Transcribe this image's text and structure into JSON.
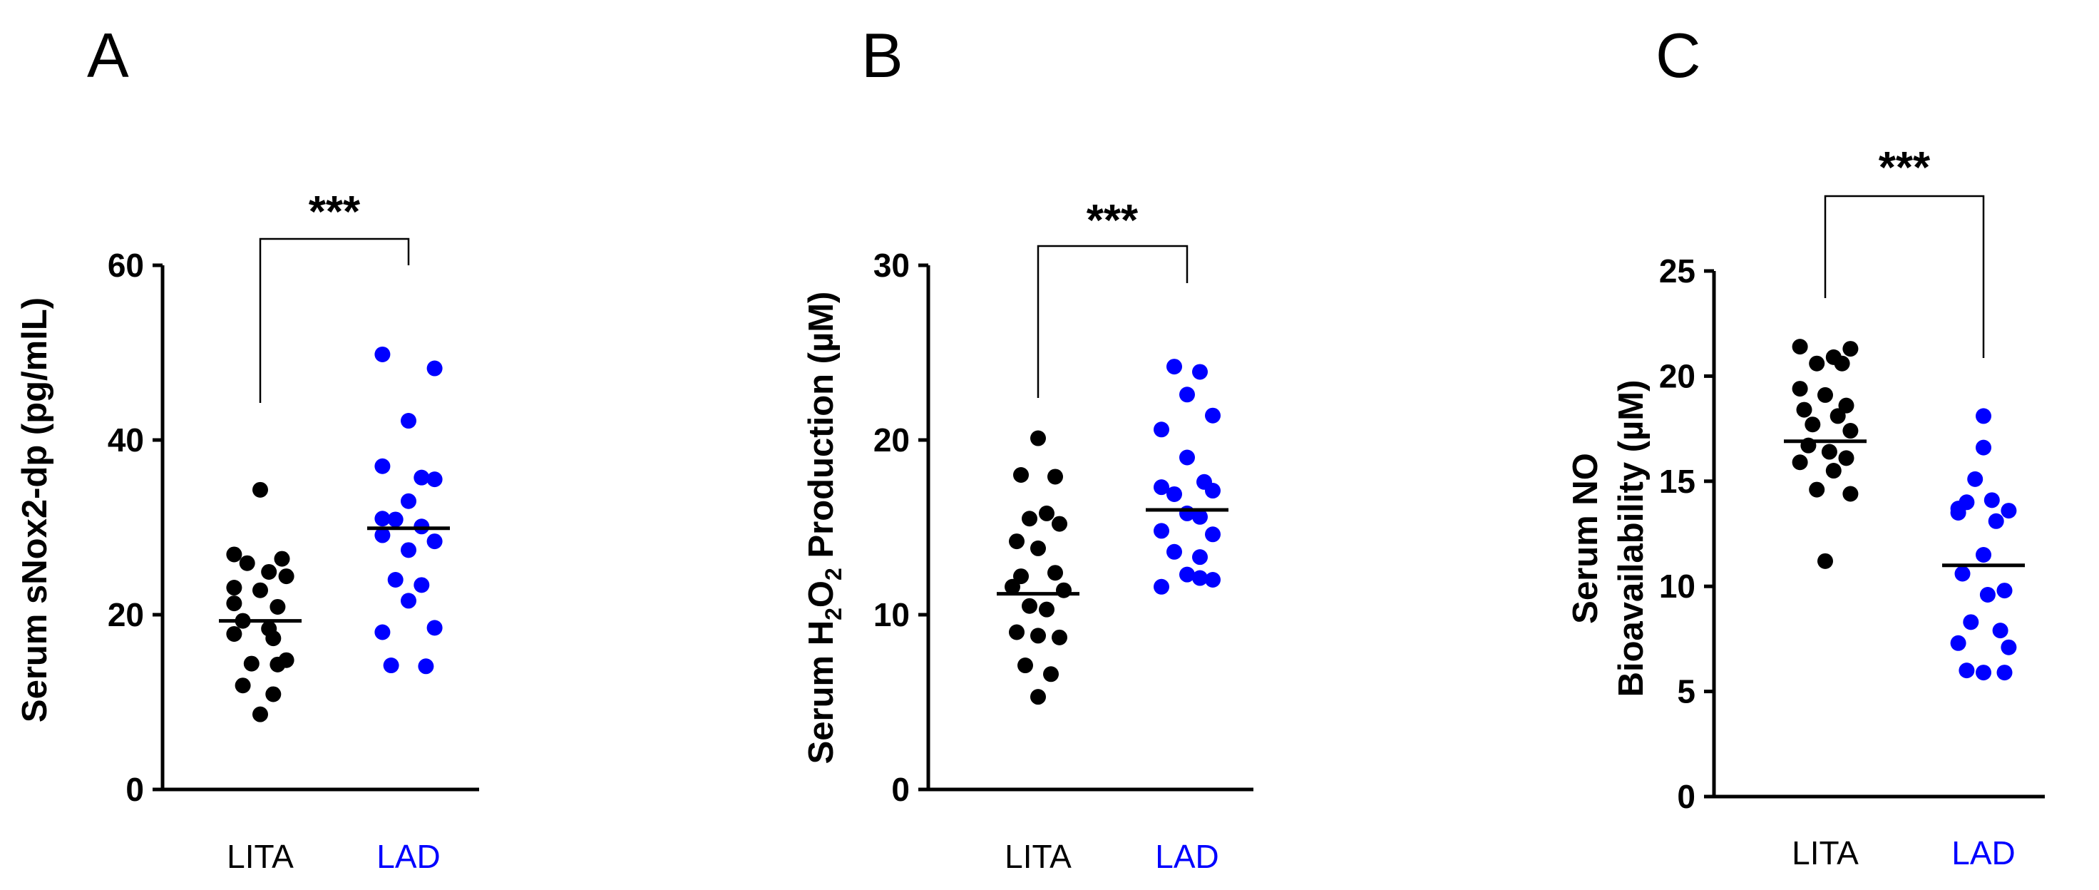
{
  "colors": {
    "lita": "#000000",
    "lad": "#0000ff",
    "text": "#000000"
  },
  "chart_data": [
    {
      "type": "scatter",
      "panel": "A",
      "ylabel": "Serum sNox2-dp (pg/mlL)",
      "ylabel_sub": "",
      "ylim": [
        0,
        60
      ],
      "yticks": [
        0,
        20,
        40,
        60
      ],
      "categories": [
        "LITA",
        "LAD"
      ],
      "significance": "***",
      "series": [
        {
          "name": "LITA",
          "color": "#000000",
          "mean": 19.3,
          "points": [
            [
              0.0,
              34.3
            ],
            [
              -0.3,
              26.9
            ],
            [
              0.25,
              26.4
            ],
            [
              -0.15,
              25.9
            ],
            [
              0.1,
              24.9
            ],
            [
              0.3,
              24.4
            ],
            [
              -0.3,
              23.1
            ],
            [
              0.0,
              22.8
            ],
            [
              -0.3,
              21.3
            ],
            [
              0.2,
              20.9
            ],
            [
              -0.2,
              19.3
            ],
            [
              0.1,
              18.4
            ],
            [
              -0.3,
              17.8
            ],
            [
              0.15,
              17.3
            ],
            [
              0.3,
              14.8
            ],
            [
              -0.1,
              14.4
            ],
            [
              0.2,
              14.3
            ],
            [
              -0.2,
              11.9
            ],
            [
              0.15,
              10.9
            ],
            [
              0.0,
              8.6
            ]
          ]
        },
        {
          "name": "LAD",
          "color": "#0000ff",
          "mean": 29.9,
          "points": [
            [
              -0.3,
              49.8
            ],
            [
              0.3,
              48.2
            ],
            [
              0.0,
              42.2
            ],
            [
              -0.3,
              37.0
            ],
            [
              0.15,
              35.7
            ],
            [
              0.3,
              35.5
            ],
            [
              0.0,
              33.0
            ],
            [
              -0.3,
              31.0
            ],
            [
              -0.15,
              30.9
            ],
            [
              0.15,
              30.1
            ],
            [
              -0.3,
              29.1
            ],
            [
              0.3,
              28.4
            ],
            [
              0.0,
              27.4
            ],
            [
              -0.15,
              24.0
            ],
            [
              0.15,
              23.4
            ],
            [
              0.0,
              21.6
            ],
            [
              0.3,
              18.5
            ],
            [
              -0.3,
              18.0
            ],
            [
              0.2,
              14.1
            ],
            [
              -0.2,
              14.2
            ]
          ]
        }
      ]
    },
    {
      "type": "scatter",
      "panel": "B",
      "ylabel": "Serum H",
      "ylabel_sub1": "2",
      "ylabel_mid": "O",
      "ylabel_sub2": "2",
      "ylabel_tail": " Production (µM)",
      "ylim": [
        0,
        30
      ],
      "yticks": [
        0,
        10,
        20,
        30
      ],
      "categories": [
        "LITA",
        "LAD"
      ],
      "significance": "***",
      "series": [
        {
          "name": "LITA",
          "color": "#000000",
          "mean": 11.2,
          "points": [
            [
              0.0,
              20.1
            ],
            [
              -0.2,
              18.0
            ],
            [
              0.2,
              17.9
            ],
            [
              0.1,
              15.8
            ],
            [
              -0.1,
              15.5
            ],
            [
              0.25,
              15.2
            ],
            [
              -0.25,
              14.2
            ],
            [
              0.0,
              13.8
            ],
            [
              0.2,
              12.4
            ],
            [
              -0.2,
              12.2
            ],
            [
              -0.3,
              11.6
            ],
            [
              0.3,
              11.4
            ],
            [
              -0.1,
              10.5
            ],
            [
              0.1,
              10.3
            ],
            [
              -0.25,
              9.0
            ],
            [
              0.0,
              8.8
            ],
            [
              0.25,
              8.7
            ],
            [
              -0.15,
              7.1
            ],
            [
              0.15,
              6.6
            ],
            [
              0.0,
              5.3
            ]
          ]
        },
        {
          "name": "LAD",
          "color": "#0000ff",
          "mean": 16.0,
          "points": [
            [
              -0.15,
              24.2
            ],
            [
              0.15,
              23.9
            ],
            [
              0.0,
              22.6
            ],
            [
              0.3,
              21.4
            ],
            [
              -0.3,
              20.6
            ],
            [
              0.0,
              19.0
            ],
            [
              0.2,
              17.6
            ],
            [
              -0.3,
              17.3
            ],
            [
              0.3,
              17.1
            ],
            [
              -0.15,
              16.9
            ],
            [
              0.0,
              15.8
            ],
            [
              0.15,
              15.6
            ],
            [
              -0.3,
              14.8
            ],
            [
              0.3,
              14.6
            ],
            [
              -0.15,
              13.6
            ],
            [
              0.15,
              13.3
            ],
            [
              0.0,
              12.3
            ],
            [
              -0.3,
              11.6
            ],
            [
              0.3,
              12.0
            ],
            [
              0.15,
              12.1
            ]
          ]
        }
      ]
    },
    {
      "type": "scatter",
      "panel": "C",
      "ylabel_line1": "Serum NO",
      "ylabel_line2": "Bioavailability (µM)",
      "ylim": [
        0,
        25
      ],
      "yticks": [
        0,
        5,
        10,
        15,
        20,
        25
      ],
      "categories": [
        "LITA",
        "LAD"
      ],
      "significance": "***",
      "series": [
        {
          "name": "LITA",
          "color": "#000000",
          "mean": 16.9,
          "points": [
            [
              -0.3,
              21.4
            ],
            [
              0.3,
              21.3
            ],
            [
              0.1,
              20.9
            ],
            [
              -0.1,
              20.6
            ],
            [
              0.2,
              20.6
            ],
            [
              -0.3,
              19.4
            ],
            [
              0.0,
              19.1
            ],
            [
              0.25,
              18.6
            ],
            [
              -0.25,
              18.4
            ],
            [
              0.15,
              18.1
            ],
            [
              -0.15,
              17.7
            ],
            [
              0.3,
              17.4
            ],
            [
              -0.2,
              16.7
            ],
            [
              0.05,
              16.4
            ],
            [
              0.25,
              16.1
            ],
            [
              -0.3,
              15.9
            ],
            [
              0.1,
              15.5
            ],
            [
              -0.1,
              14.6
            ],
            [
              0.3,
              14.4
            ],
            [
              0.0,
              11.2
            ]
          ]
        },
        {
          "name": "LAD",
          "color": "#0000ff",
          "mean": 11.0,
          "points": [
            [
              0.0,
              18.1
            ],
            [
              0.0,
              16.6
            ],
            [
              -0.1,
              15.1
            ],
            [
              -0.3,
              13.7
            ],
            [
              0.3,
              13.6
            ],
            [
              0.15,
              13.1
            ],
            [
              -0.2,
              14.0
            ],
            [
              0.1,
              14.1
            ],
            [
              -0.3,
              13.5
            ],
            [
              0.0,
              11.5
            ],
            [
              -0.25,
              10.6
            ],
            [
              0.25,
              9.8
            ],
            [
              0.05,
              9.6
            ],
            [
              -0.15,
              8.3
            ],
            [
              0.2,
              7.9
            ],
            [
              -0.3,
              7.3
            ],
            [
              0.3,
              7.1
            ],
            [
              -0.2,
              6.0
            ],
            [
              0.0,
              5.9
            ],
            [
              0.25,
              5.9
            ]
          ]
        }
      ]
    }
  ]
}
